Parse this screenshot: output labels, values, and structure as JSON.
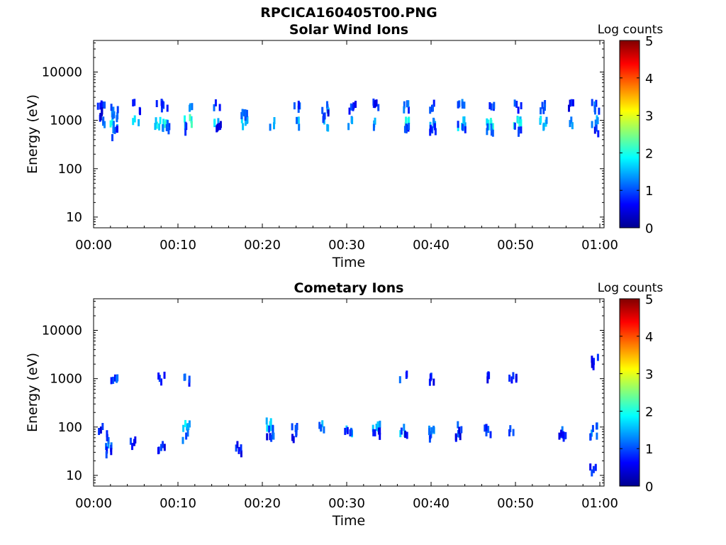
{
  "figure_title": "RPCICA160405T00.PNG",
  "colorbar": {
    "label": "Log counts",
    "ticks": [
      "0",
      "1",
      "2",
      "3",
      "4",
      "5"
    ],
    "range": [
      0,
      5
    ],
    "colormap": "jet"
  },
  "chart_data": [
    {
      "type": "heatmap",
      "title": "Solar Wind Ions",
      "xlabel": "Time",
      "ylabel": "Energy (eV)",
      "x_ticks": [
        "00:00",
        "00:10",
        "00:20",
        "00:30",
        "00:40",
        "00:50",
        "01:00"
      ],
      "y_ticks": [
        "10",
        "100",
        "1000",
        "10000"
      ],
      "y_scale": "log",
      "xlim_minutes": [
        0,
        60.5
      ],
      "ylim_eV": [
        6,
        45000
      ],
      "bursts": [
        {
          "t": 0.8,
          "c": [
            [
              900,
              1.4
            ],
            [
              1800,
              1.1
            ],
            [
              1300,
              0.9
            ]
          ]
        },
        {
          "t": 2.3,
          "c": [
            [
              900,
              2.2
            ],
            [
              700,
              1.6
            ],
            [
              1300,
              1.6
            ],
            [
              1900,
              1.3
            ],
            [
              550,
              1.1
            ]
          ]
        },
        {
          "t": 5.0,
          "c": [
            [
              900,
              1.9
            ],
            [
              1900,
              1.1
            ]
          ]
        },
        {
          "t": 7.6,
          "c": [
            [
              900,
              2.1
            ],
            [
              2000,
              1.3
            ]
          ]
        },
        {
          "t": 8.4,
          "c": [
            [
              950,
              2.3
            ],
            [
              700,
              1.4
            ],
            [
              1900,
              1.2
            ]
          ]
        },
        {
          "t": 11.1,
          "c": [
            [
              950,
              2.3
            ],
            [
              2000,
              1.6
            ],
            [
              650,
              1.2
            ]
          ]
        },
        {
          "t": 14.6,
          "c": [
            [
              950,
              2.0
            ],
            [
              1900,
              1.2
            ],
            [
              700,
              1.0
            ]
          ]
        },
        {
          "t": 17.7,
          "c": [
            [
              900,
              1.8
            ],
            [
              1200,
              1.2
            ]
          ]
        },
        {
          "t": 20.9,
          "c": [
            [
              900,
              1.6
            ]
          ]
        },
        {
          "t": 24.1,
          "c": [
            [
              900,
              1.7
            ],
            [
              1900,
              1.2
            ]
          ]
        },
        {
          "t": 27.3,
          "c": [
            [
              850,
              2.0
            ],
            [
              1900,
              1.6
            ],
            [
              1200,
              1.0
            ]
          ]
        },
        {
          "t": 30.5,
          "c": [
            [
              900,
              1.7
            ],
            [
              1900,
              1.1
            ]
          ]
        },
        {
          "t": 33.5,
          "c": [
            [
              900,
              1.6
            ],
            [
              1900,
              1.0
            ]
          ]
        },
        {
          "t": 36.9,
          "c": [
            [
              850,
              2.5
            ],
            [
              1900,
              1.3
            ],
            [
              650,
              1.2
            ]
          ]
        },
        {
          "t": 40.1,
          "c": [
            [
              900,
              1.6
            ],
            [
              1900,
              1.1
            ],
            [
              650,
              1.0
            ]
          ]
        },
        {
          "t": 43.5,
          "c": [
            [
              850,
              2.0
            ],
            [
              1900,
              1.5
            ],
            [
              700,
              1.2
            ]
          ]
        },
        {
          "t": 46.9,
          "c": [
            [
              900,
              2.2
            ],
            [
              1900,
              1.3
            ],
            [
              650,
              1.2
            ]
          ]
        },
        {
          "t": 50.1,
          "c": [
            [
              900,
              2.1
            ],
            [
              1900,
              1.2
            ],
            [
              650,
              1.1
            ]
          ]
        },
        {
          "t": 53.2,
          "c": [
            [
              900,
              1.8
            ],
            [
              1900,
              1.1
            ]
          ]
        },
        {
          "t": 56.3,
          "c": [
            [
              900,
              1.6
            ],
            [
              1900,
              1.0
            ]
          ]
        },
        {
          "t": 59.4,
          "c": [
            [
              900,
              1.7
            ],
            [
              1900,
              1.3
            ],
            [
              650,
              1.0
            ]
          ]
        }
      ]
    },
    {
      "type": "heatmap",
      "title": "Cometary Ions",
      "xlabel": "Time",
      "ylabel": "Energy (eV)",
      "x_ticks": [
        "00:00",
        "00:10",
        "00:20",
        "00:30",
        "00:40",
        "00:50",
        "01:00"
      ],
      "y_ticks": [
        "10",
        "100",
        "1000",
        "10000"
      ],
      "y_scale": "log",
      "xlim_minutes": [
        0,
        60.5
      ],
      "ylim_eV": [
        6,
        45000
      ],
      "bursts": [
        {
          "t": 0.6,
          "c": [
            [
              100,
              1.0
            ]
          ]
        },
        {
          "t": 1.8,
          "c": [
            [
              45,
              1.5
            ],
            [
              30,
              1.1
            ],
            [
              60,
              1.2
            ]
          ]
        },
        {
          "t": 2.3,
          "c": [
            [
              950,
              1.2
            ]
          ]
        },
        {
          "t": 4.4,
          "c": [
            [
              50,
              1.0
            ]
          ]
        },
        {
          "t": 8.0,
          "c": [
            [
              1000,
              1.0
            ],
            [
              40,
              1.0
            ]
          ]
        },
        {
          "t": 10.9,
          "c": [
            [
              100,
              1.9
            ],
            [
              60,
              1.3
            ],
            [
              1000,
              1.2
            ]
          ]
        },
        {
          "t": 17.0,
          "c": [
            [
              35,
              1.0
            ]
          ]
        },
        {
          "t": 20.8,
          "c": [
            [
              110,
              1.9
            ],
            [
              80,
              1.3
            ],
            [
              65,
              1.0
            ]
          ]
        },
        {
          "t": 23.7,
          "c": [
            [
              85,
              1.4
            ],
            [
              65,
              1.0
            ]
          ]
        },
        {
          "t": 26.9,
          "c": [
            [
              110,
              1.6
            ]
          ]
        },
        {
          "t": 30.1,
          "c": [
            [
              85,
              1.8
            ],
            [
              70,
              1.0
            ]
          ]
        },
        {
          "t": 33.4,
          "c": [
            [
              95,
              1.8
            ],
            [
              75,
              1.0
            ]
          ]
        },
        {
          "t": 36.6,
          "c": [
            [
              90,
              1.8
            ],
            [
              1000,
              1.2
            ],
            [
              70,
              1.0
            ]
          ]
        },
        {
          "t": 39.9,
          "c": [
            [
              90,
              1.8
            ],
            [
              70,
              1.3
            ],
            [
              1000,
              1.0
            ]
          ]
        },
        {
          "t": 43.1,
          "c": [
            [
              90,
              1.4
            ],
            [
              70,
              1.0
            ]
          ]
        },
        {
          "t": 46.5,
          "c": [
            [
              85,
              1.3
            ],
            [
              1000,
              1.0
            ]
          ]
        },
        {
          "t": 49.6,
          "c": [
            [
              90,
              1.4
            ],
            [
              1000,
              1.0
            ]
          ]
        },
        {
          "t": 55.4,
          "c": [
            [
              80,
              1.3
            ],
            [
              65,
              1.0
            ]
          ]
        },
        {
          "t": 59.2,
          "c": [
            [
              85,
              1.5
            ],
            [
              65,
              1.2
            ],
            [
              12,
              1.0
            ],
            [
              2200,
              1.0
            ]
          ]
        }
      ]
    }
  ]
}
